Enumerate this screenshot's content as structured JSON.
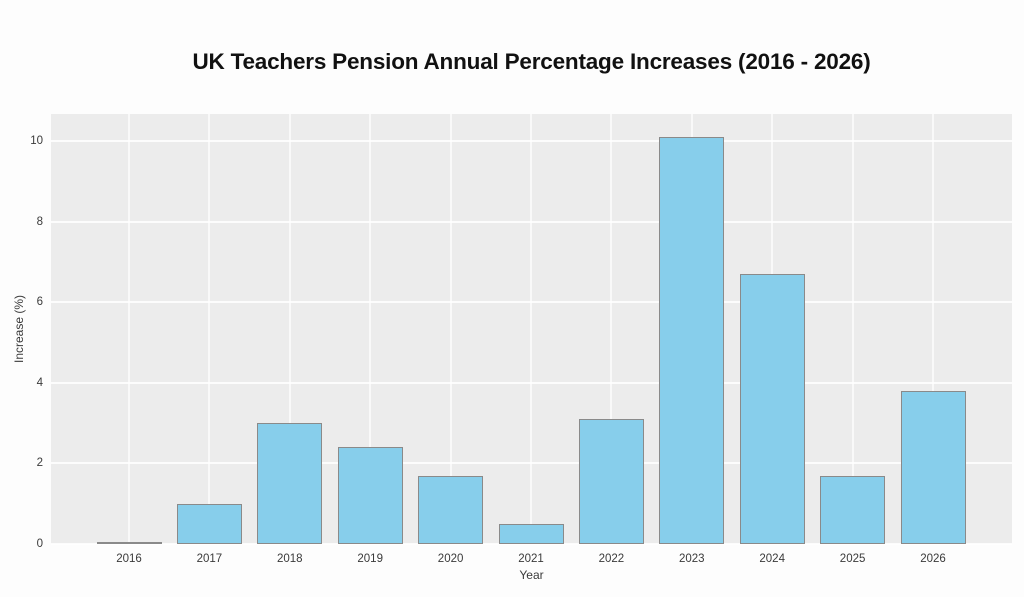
{
  "page": {
    "title": "UK Teachers Pension Annual Percentage Increases (2016 - 2026)"
  },
  "chart_data": {
    "type": "bar",
    "title": "UK Teachers Pension Annual Percentage Increases (2016 - 2026)",
    "xlabel": "Year",
    "ylabel": "Increase (%)",
    "categories": [
      "2016",
      "2017",
      "2018",
      "2019",
      "2020",
      "2021",
      "2022",
      "2023",
      "2024",
      "2025",
      "2026"
    ],
    "values": [
      0.0,
      1.0,
      3.0,
      2.4,
      1.7,
      0.5,
      3.1,
      10.1,
      6.7,
      1.7,
      3.8
    ],
    "yticks": [
      0,
      2,
      4,
      6,
      8,
      10
    ],
    "ytick_labels": [
      "0",
      "2",
      "4",
      "6",
      "8",
      "10"
    ],
    "ylim": [
      0,
      10.67
    ],
    "grid": true,
    "legend": false,
    "colors": {
      "bar_fill": "#87CEEB",
      "bar_edge": "#8a8a8a",
      "plot_bg": "#ececec",
      "grid": "#ffffff",
      "tick_text": "#3a3a3a",
      "title_text": "#111111",
      "figure_bg": "#fdfdfd"
    }
  }
}
